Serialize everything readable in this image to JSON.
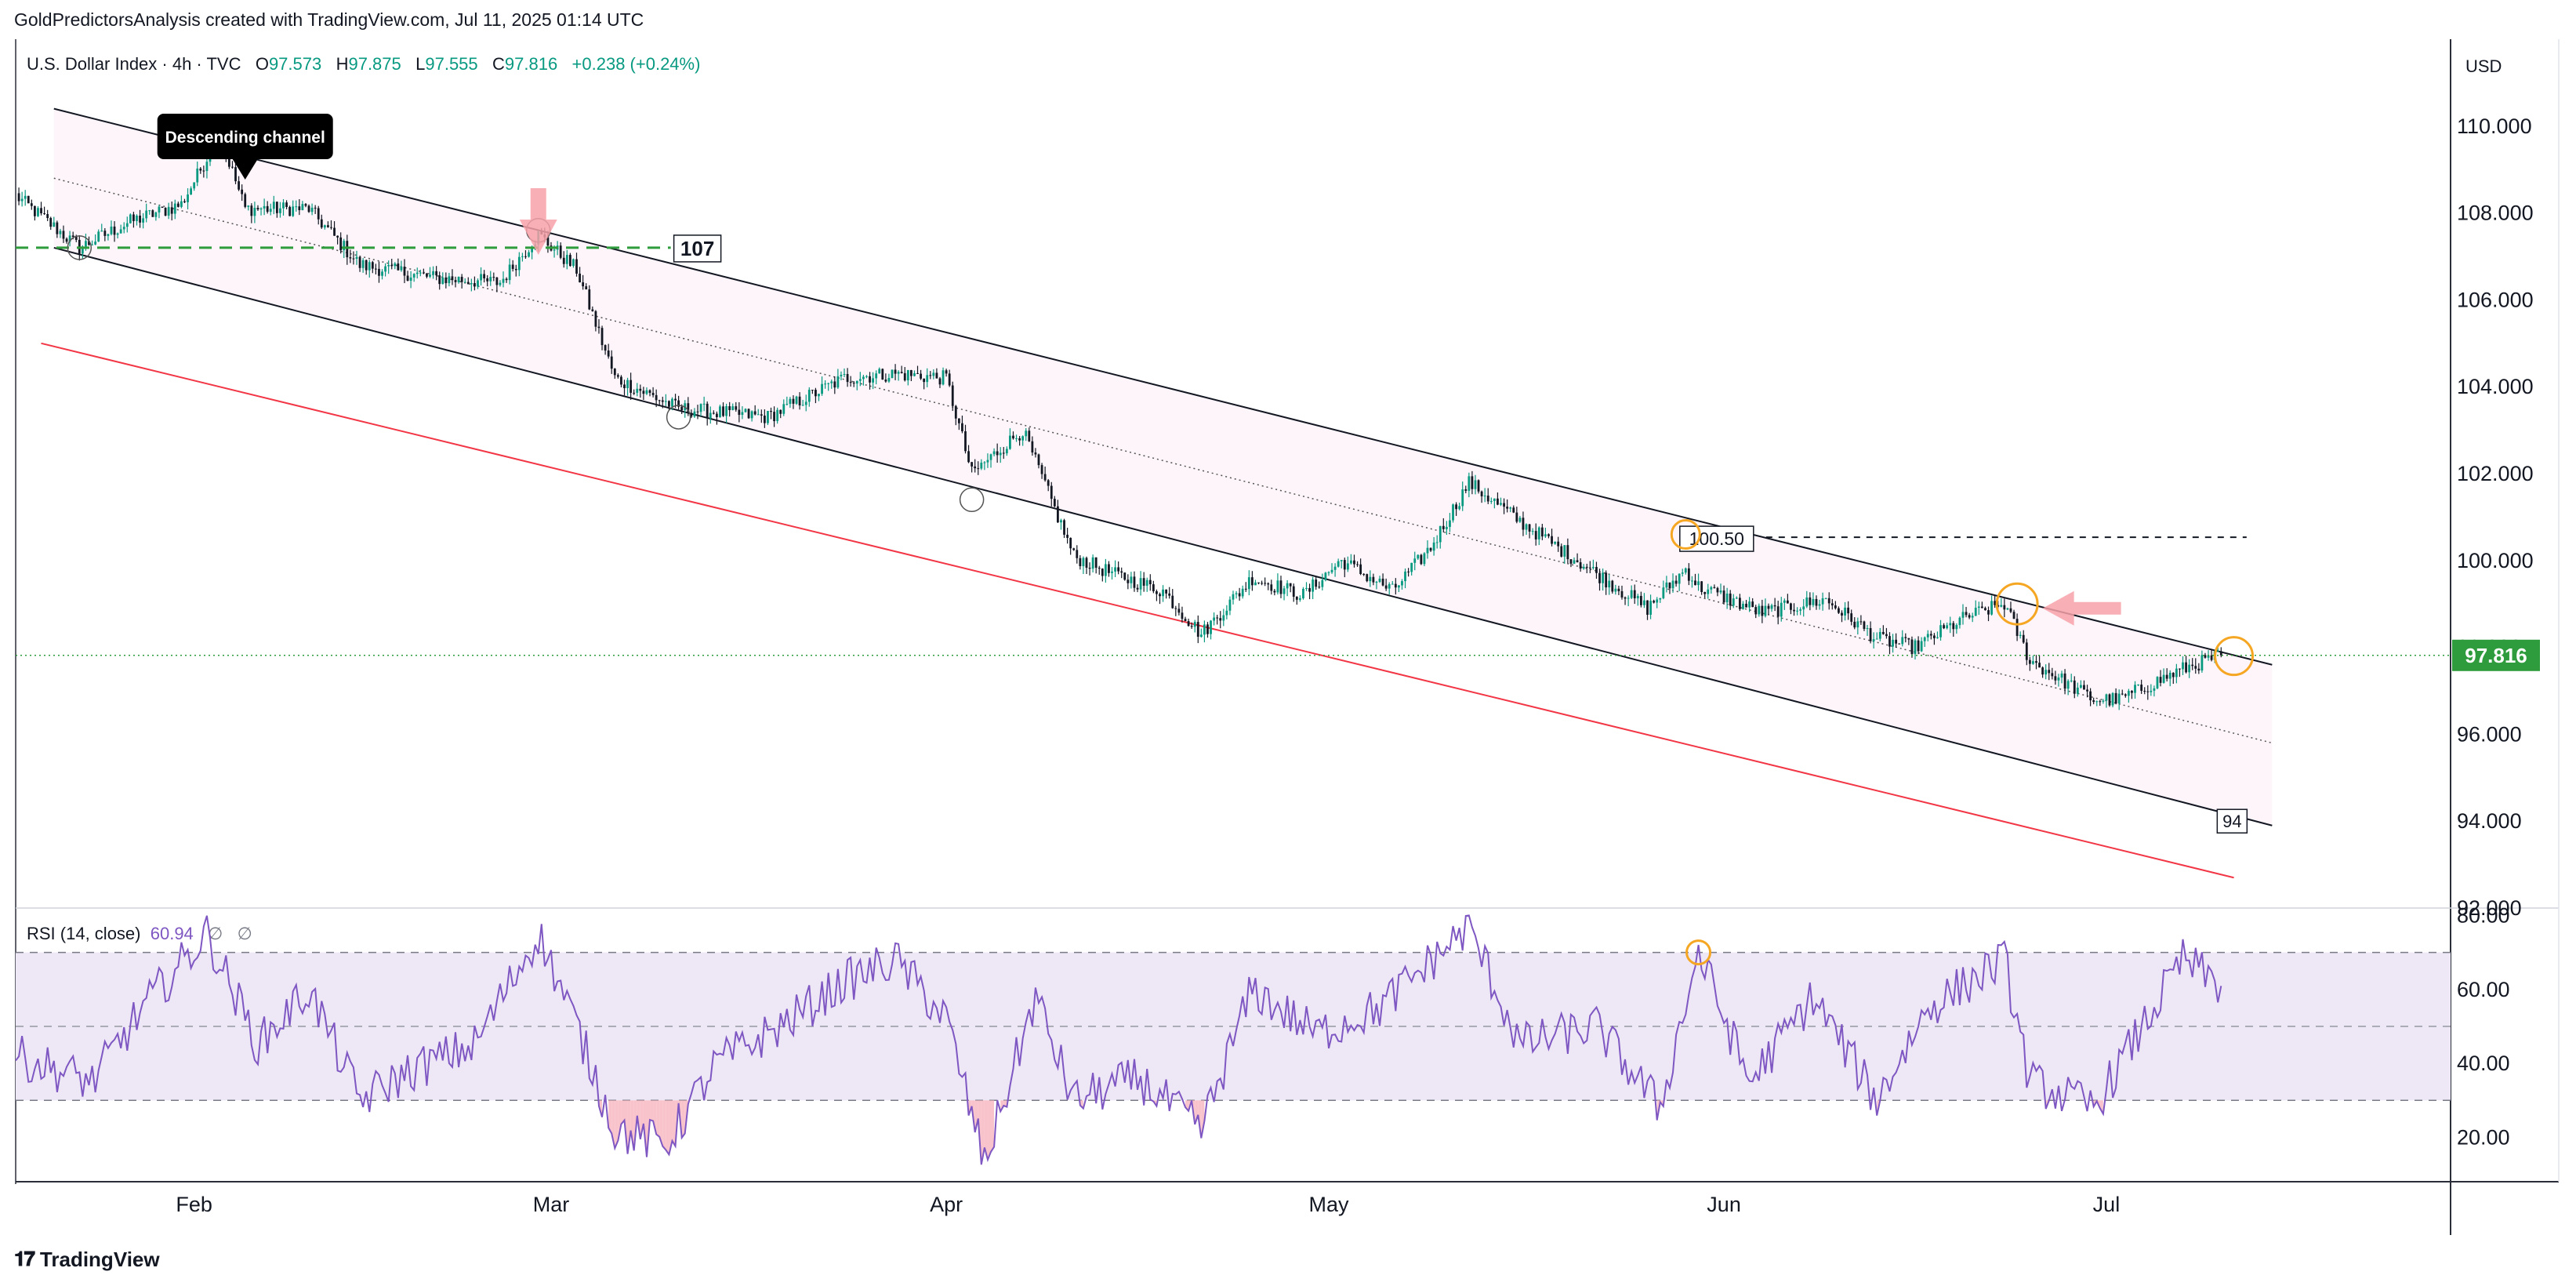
{
  "header": {
    "attribution": "GoldPredictorsAnalysis created with TradingView.com, Jul 11, 2025 01:14 UTC"
  },
  "legend": {
    "symbol": "U.S. Dollar Index · 4h · TVC",
    "open_label": "O",
    "open": "97.573",
    "high_label": "H",
    "high": "97.875",
    "low_label": "L",
    "low": "97.555",
    "close_label": "C",
    "close": "97.816",
    "change": "+0.238 (+0.24%)"
  },
  "currency": "USD",
  "rsi_legend": {
    "name": "RSI (14, close)",
    "value": "60.94",
    "na1": "∅",
    "na2": "∅"
  },
  "footer": {
    "brand": "TradingView"
  },
  "colors": {
    "up": "#089981",
    "down": "#131722",
    "channel": "#131722",
    "support_red": "#f23645",
    "dashed_green": "#2e9c3c",
    "rsi_line": "#7e57c2",
    "rsi_band": "#ede7f6",
    "orange_circle": "#f5a623",
    "price_tag": "#2e9c3c",
    "arrow": "#f7a1a8"
  },
  "chart_data": [
    {
      "type": "candlestick",
      "timeframe": "4h",
      "price_axis": {
        "ticks": [
          "92.000",
          "94.000",
          "96.000",
          "98.000",
          "100.000",
          "102.000",
          "104.000",
          "106.000",
          "108.000",
          "110.000"
        ],
        "ylim": [
          92,
          112
        ]
      },
      "x_axis": {
        "ticks": [
          "Feb",
          "Mar",
          "Apr",
          "May",
          "Jun",
          "Jul"
        ],
        "xlim": [
          "2025-01-18",
          "2025-07-28"
        ]
      },
      "current_price": "97.816",
      "key_points": [
        {
          "date": "2025-01-18",
          "close": 108.4
        },
        {
          "date": "2025-01-23",
          "close": 107.2
        },
        {
          "date": "2025-01-27",
          "close": 107.8
        },
        {
          "date": "2025-01-31",
          "close": 108.2
        },
        {
          "date": "2025-02-03",
          "close": 109.8
        },
        {
          "date": "2025-02-05",
          "close": 108.1
        },
        {
          "date": "2025-02-10",
          "close": 108.1
        },
        {
          "date": "2025-02-14",
          "close": 106.8
        },
        {
          "date": "2025-02-20",
          "close": 106.5
        },
        {
          "date": "2025-02-25",
          "close": 106.4
        },
        {
          "date": "2025-02-28",
          "close": 107.5
        },
        {
          "date": "2025-03-03",
          "close": 106.7
        },
        {
          "date": "2025-03-06",
          "close": 104.2
        },
        {
          "date": "2025-03-11",
          "close": 103.5
        },
        {
          "date": "2025-03-18",
          "close": 103.3
        },
        {
          "date": "2025-03-24",
          "close": 104.2
        },
        {
          "date": "2025-03-28",
          "close": 104.3
        },
        {
          "date": "2025-04-01",
          "close": 104.2
        },
        {
          "date": "2025-04-03",
          "close": 102.0
        },
        {
          "date": "2025-04-07",
          "close": 103.0
        },
        {
          "date": "2025-04-11",
          "close": 100.1
        },
        {
          "date": "2025-04-14",
          "close": 99.7
        },
        {
          "date": "2025-04-18",
          "close": 99.3
        },
        {
          "date": "2025-04-21",
          "close": 98.3
        },
        {
          "date": "2025-04-25",
          "close": 99.6
        },
        {
          "date": "2025-04-29",
          "close": 99.2
        },
        {
          "date": "2025-05-02",
          "close": 100.0
        },
        {
          "date": "2025-05-06",
          "close": 99.3
        },
        {
          "date": "2025-05-09",
          "close": 100.3
        },
        {
          "date": "2025-05-12",
          "close": 101.8
        },
        {
          "date": "2025-05-16",
          "close": 100.9
        },
        {
          "date": "2025-05-21",
          "close": 99.9
        },
        {
          "date": "2025-05-26",
          "close": 98.9
        },
        {
          "date": "2025-05-29",
          "close": 99.8
        },
        {
          "date": "2025-05-30",
          "close": 99.4
        },
        {
          "date": "2025-06-04",
          "close": 98.8
        },
        {
          "date": "2025-06-09",
          "close": 99.1
        },
        {
          "date": "2025-06-13",
          "close": 98.2
        },
        {
          "date": "2025-06-16",
          "close": 98.0
        },
        {
          "date": "2025-06-20",
          "close": 98.7
        },
        {
          "date": "2025-06-23",
          "close": 99.0
        },
        {
          "date": "2025-06-25",
          "close": 97.7
        },
        {
          "date": "2025-06-30",
          "close": 96.8
        },
        {
          "date": "2025-07-02",
          "close": 96.8
        },
        {
          "date": "2025-07-07",
          "close": 97.5
        },
        {
          "date": "2025-07-10",
          "close": 97.82
        }
      ],
      "channel": {
        "upper": [
          {
            "date": "2025-01-21",
            "price": 110.4
          },
          {
            "date": "2025-07-14",
            "price": 97.6
          }
        ],
        "mid": [
          {
            "date": "2025-01-21",
            "price": 108.8
          },
          {
            "date": "2025-07-14",
            "price": 95.8
          }
        ],
        "lower": [
          {
            "date": "2025-01-21",
            "price": 107.2
          },
          {
            "date": "2025-07-14",
            "price": 93.9
          }
        ],
        "red_support": [
          {
            "date": "2025-01-20",
            "price": 105.0
          },
          {
            "date": "2025-07-11",
            "price": 92.7
          }
        ]
      },
      "levels": [
        {
          "label": "107",
          "price": 107.2,
          "from": "2025-01-18",
          "to": "2025-03-11",
          "style": "dashed-green"
        },
        {
          "label": "100.50",
          "price": 100.5,
          "from": "2025-05-31",
          "to": "2025-07-12",
          "style": "dashed-black"
        },
        {
          "label": "94",
          "price": 94.0
        }
      ],
      "annotations": [
        {
          "text": "Descending channel"
        }
      ]
    },
    {
      "type": "line",
      "indicator": "RSI (14, close)",
      "value": "60.94",
      "y_axis": {
        "ticks": [
          "20.00",
          "40.00",
          "60.00",
          "80.00"
        ],
        "ylim": [
          8,
          82
        ]
      },
      "bands": {
        "upper": 70,
        "middle": 50,
        "lower": 30
      },
      "key_points": [
        {
          "date": "2025-01-18",
          "value": 42
        },
        {
          "date": "2025-01-24",
          "value": 35
        },
        {
          "date": "2025-01-28",
          "value": 55
        },
        {
          "date": "2025-02-02",
          "value": 75
        },
        {
          "date": "2025-02-06",
          "value": 45
        },
        {
          "date": "2025-02-10",
          "value": 60
        },
        {
          "date": "2025-02-14",
          "value": 30
        },
        {
          "date": "2025-02-18",
          "value": 38
        },
        {
          "date": "2025-02-23",
          "value": 45
        },
        {
          "date": "2025-02-28",
          "value": 75
        },
        {
          "date": "2025-03-03",
          "value": 50
        },
        {
          "date": "2025-03-06",
          "value": 22
        },
        {
          "date": "2025-03-10",
          "value": 18
        },
        {
          "date": "2025-03-14",
          "value": 40
        },
        {
          "date": "2025-03-19",
          "value": 50
        },
        {
          "date": "2025-03-24",
          "value": 62
        },
        {
          "date": "2025-03-28",
          "value": 68
        },
        {
          "date": "2025-04-01",
          "value": 52
        },
        {
          "date": "2025-04-04",
          "value": 13
        },
        {
          "date": "2025-04-08",
          "value": 58
        },
        {
          "date": "2025-04-11",
          "value": 30
        },
        {
          "date": "2025-04-16",
          "value": 36
        },
        {
          "date": "2025-04-21",
          "value": 22
        },
        {
          "date": "2025-04-25",
          "value": 60
        },
        {
          "date": "2025-04-30",
          "value": 48
        },
        {
          "date": "2025-05-05",
          "value": 55
        },
        {
          "date": "2025-05-12",
          "value": 77
        },
        {
          "date": "2025-05-16",
          "value": 45
        },
        {
          "date": "2025-05-22",
          "value": 50
        },
        {
          "date": "2025-05-27",
          "value": 28
        },
        {
          "date": "2025-05-30",
          "value": 70
        },
        {
          "date": "2025-06-03",
          "value": 35
        },
        {
          "date": "2025-06-08",
          "value": 58
        },
        {
          "date": "2025-06-13",
          "value": 30
        },
        {
          "date": "2025-06-17",
          "value": 55
        },
        {
          "date": "2025-06-23",
          "value": 68
        },
        {
          "date": "2025-06-25",
          "value": 35
        },
        {
          "date": "2025-06-30",
          "value": 28
        },
        {
          "date": "2025-07-03",
          "value": 45
        },
        {
          "date": "2025-07-07",
          "value": 68
        },
        {
          "date": "2025-07-10",
          "value": 60.94
        }
      ]
    }
  ]
}
